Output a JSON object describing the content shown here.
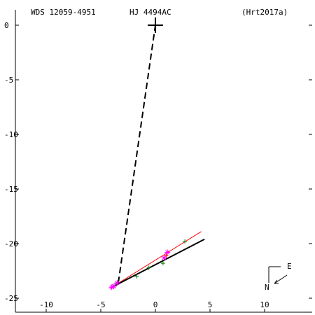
{
  "header": {
    "wds": "WDS 12059-4951",
    "pair": "HJ 4494AC",
    "reference": "(Hrt2017a)"
  },
  "compass": {
    "east": "E",
    "north": "N"
  },
  "chart_data": {
    "type": "scatter",
    "title": "",
    "xlabel": "",
    "ylabel": "",
    "xlim": [
      -14,
      14
    ],
    "ylim": [
      -26,
      1
    ],
    "x_ticks": [
      -10,
      -5,
      0,
      5,
      10
    ],
    "y_ticks": [
      0,
      -5,
      -10,
      -15,
      -20,
      -25
    ],
    "primary": {
      "x": 0,
      "y": 0
    },
    "line_to_primary": {
      "from": [
        -3.4,
        -23.6
      ],
      "to": [
        0,
        0
      ]
    },
    "fit_line_black": {
      "from": [
        -4.0,
        -24.0
      ],
      "to": [
        4.5,
        -19.6
      ]
    },
    "fit_line_red": {
      "from": [
        -4.0,
        -24.0
      ],
      "to": [
        4.2,
        -18.9
      ]
    },
    "green_points": [
      {
        "x": -3.6,
        "y": -23.7
      },
      {
        "x": -1.7,
        "y": -23.0
      },
      {
        "x": -0.6,
        "y": -22.2
      },
      {
        "x": 0.7,
        "y": -21.8
      },
      {
        "x": 2.7,
        "y": -19.8
      }
    ],
    "magenta_points": [
      {
        "x": -4.0,
        "y": -24.0
      },
      {
        "x": -3.8,
        "y": -23.9
      },
      {
        "x": -3.5,
        "y": -23.6
      },
      {
        "x": 0.8,
        "y": -21.3
      },
      {
        "x": 1.1,
        "y": -20.8
      }
    ],
    "red_points": [
      {
        "x": 1.0,
        "y": -21.1
      }
    ],
    "colors": {
      "axes": "#000000",
      "fit_black": "#000000",
      "fit_red": "#ff0000",
      "green": "#008000",
      "magenta": "#ff00ff",
      "red": "#ff0000"
    }
  }
}
